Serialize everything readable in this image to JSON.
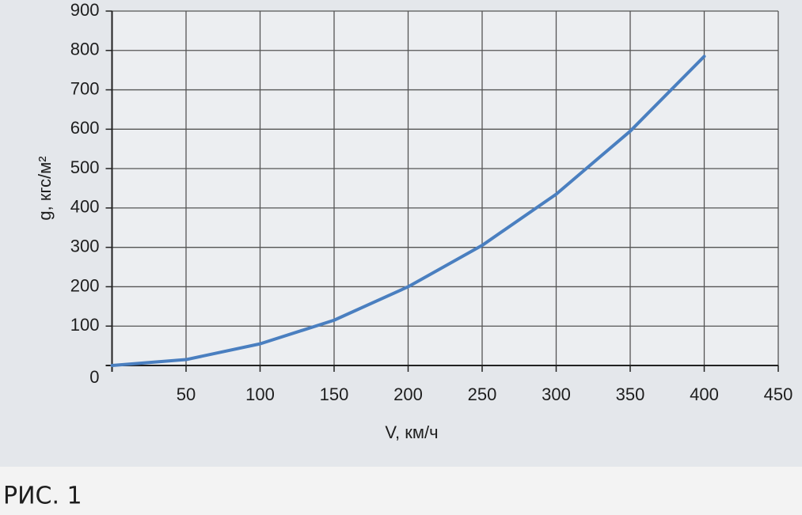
{
  "chart_data": {
    "type": "line",
    "x_label": "V, км/ч",
    "y_label": "g, кгс/м²",
    "x": [
      0,
      50,
      100,
      150,
      200,
      250,
      300,
      350,
      400
    ],
    "series": [
      {
        "name": "g",
        "color": "#4a7fc0",
        "values": [
          0,
          15,
          55,
          115,
          200,
          305,
          435,
          595,
          785
        ]
      }
    ],
    "xlim": [
      0,
      450
    ],
    "xticks": [
      50,
      100,
      150,
      200,
      250,
      300,
      350,
      400,
      450
    ],
    "ylim": [
      0,
      900
    ],
    "yticks": [
      0,
      100,
      200,
      300,
      400,
      500,
      600,
      700,
      800,
      900
    ],
    "grid": true
  },
  "caption": "РИС. 1"
}
